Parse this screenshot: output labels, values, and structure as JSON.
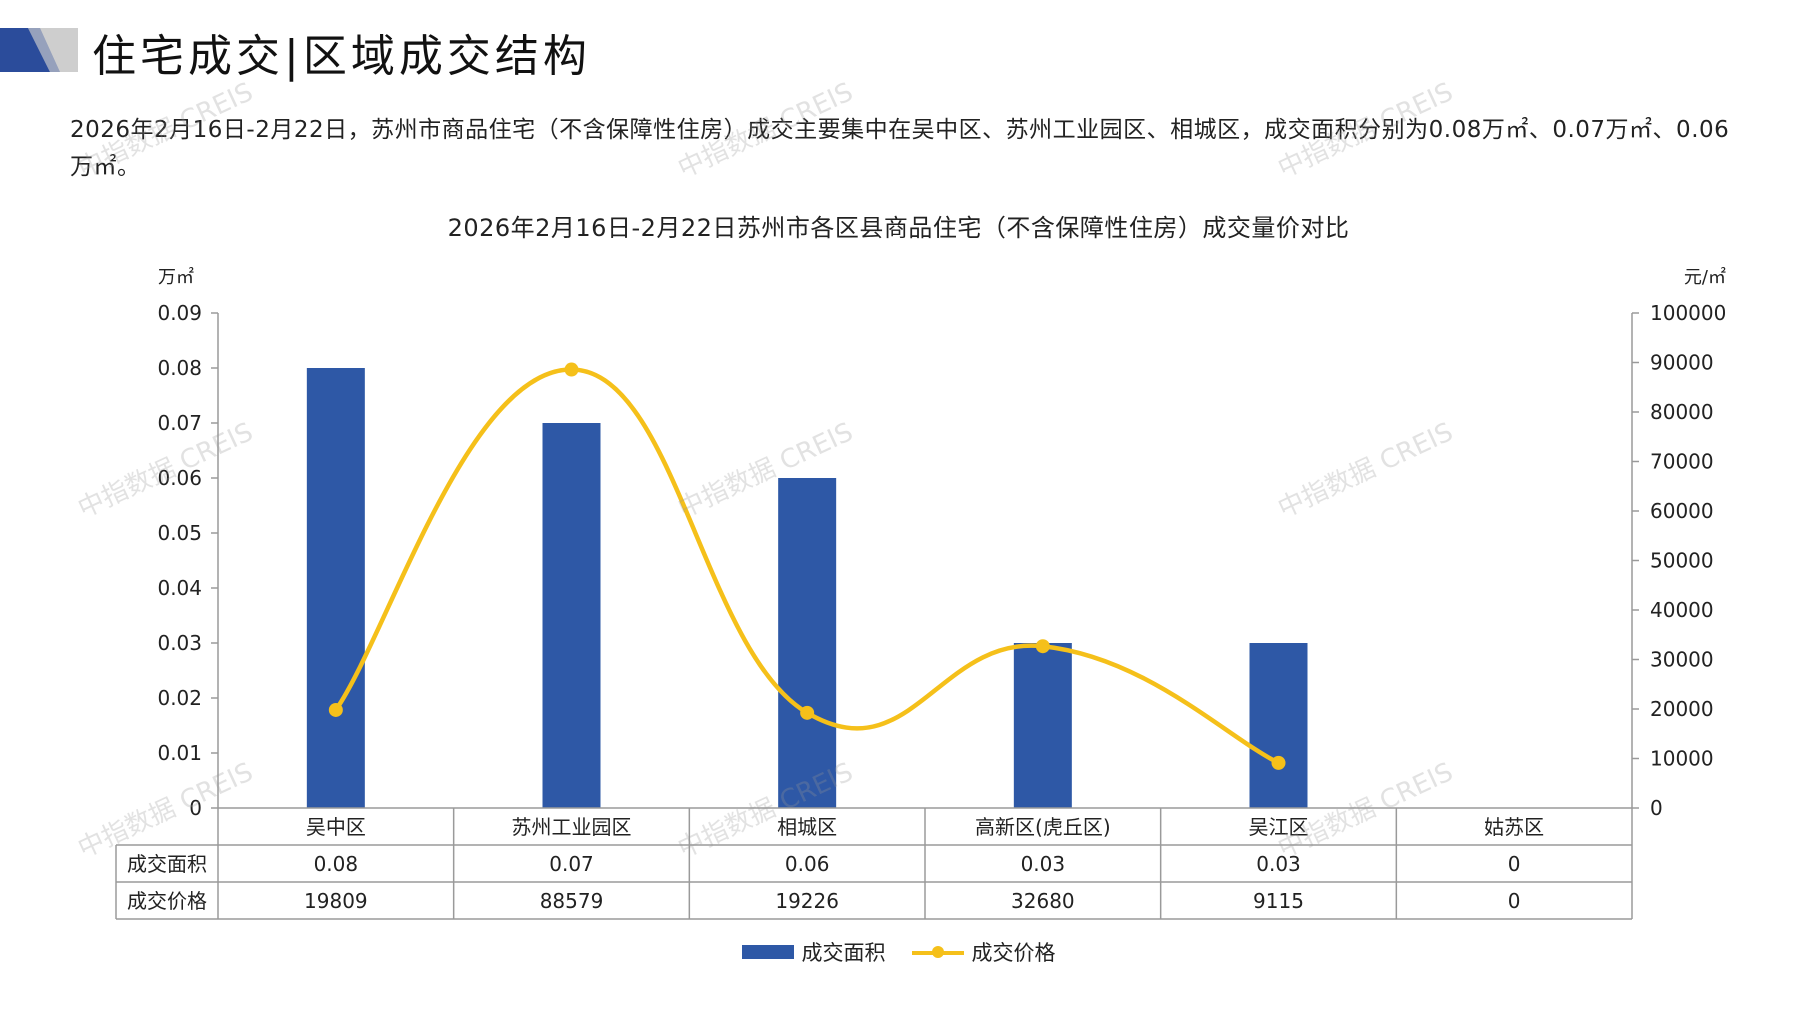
{
  "header": {
    "title": "住宅成交|区域成交结构"
  },
  "summary": "2026年2月16日-2月22日，苏州市商品住宅（不含保障性住房）成交主要集中在吴中区、苏州工业园区、相城区，成交面积分别为0.08万㎡、0.07万㎡、0.06万㎡。",
  "watermark": "中指数据 CREIS",
  "colors": {
    "bar": "#2e58a6",
    "line": "#f5c01a",
    "axis": "#9a9a9a",
    "header_dark": "#2b4c9b",
    "header_light": "#c9c9c9"
  },
  "chart_data": {
    "type": "bar",
    "title": "2026年2月16日-2月22日苏州市各区县商品住宅（不含保障性住房）成交量价对比",
    "categories": [
      "吴中区",
      "苏州工业园区",
      "相城区",
      "高新区(虎丘区)",
      "吴江区",
      "姑苏区"
    ],
    "series": [
      {
        "name": "成交面积",
        "type": "bar",
        "axis": "left",
        "values": [
          0.08,
          0.07,
          0.06,
          0.03,
          0.03,
          0
        ],
        "value_labels": [
          "0.08",
          "0.07",
          "0.06",
          "0.03",
          "0.03",
          "0"
        ]
      },
      {
        "name": "成交价格",
        "type": "line",
        "axis": "right",
        "values": [
          19809,
          88579,
          19226,
          32680,
          9115,
          0
        ],
        "value_labels": [
          "19809",
          "88579",
          "19226",
          "32680",
          "9115",
          "0"
        ]
      }
    ],
    "left_axis": {
      "unit": "万㎡",
      "ylim": [
        0,
        0.09
      ],
      "ticks": [
        "0",
        "0.01",
        "0.02",
        "0.03",
        "0.04",
        "0.05",
        "0.06",
        "0.07",
        "0.08",
        "0.09"
      ]
    },
    "right_axis": {
      "unit": "元/㎡",
      "ylim": [
        0,
        100000
      ],
      "ticks": [
        "0",
        "10000",
        "20000",
        "30000",
        "40000",
        "50000",
        "60000",
        "70000",
        "80000",
        "90000",
        "100000"
      ]
    },
    "data_table": true,
    "legend_position": "bottom",
    "line_points_drawn": 5,
    "grid": false
  }
}
